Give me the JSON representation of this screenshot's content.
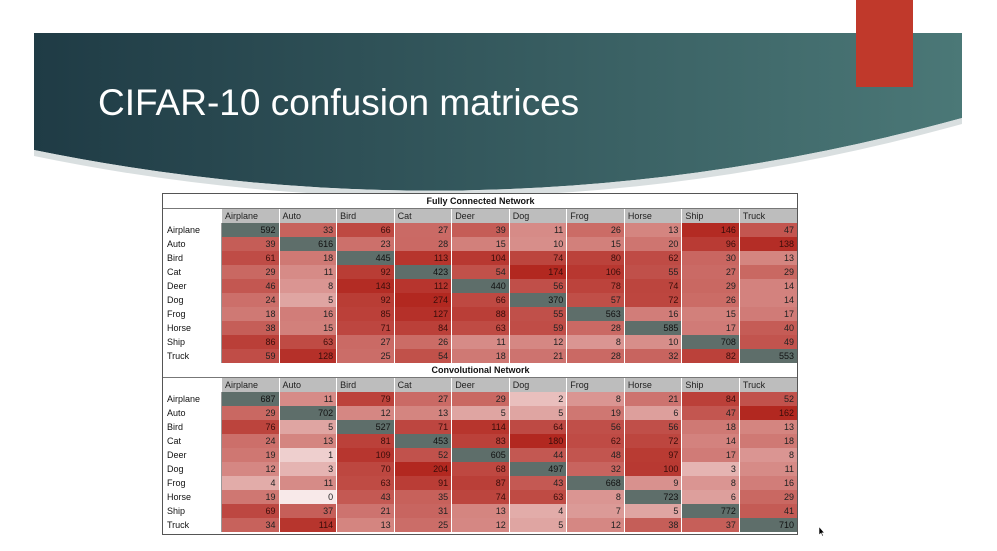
{
  "slide": {
    "title": "CIFAR-10 confusion matrices",
    "colors": {
      "banner_left": "#1f3b45",
      "banner_right": "#4b7877",
      "accent": "#c0392b",
      "low": "#f7e8e8",
      "high": "#b02a20",
      "diagonal": "#5e6e6a"
    }
  },
  "icons": {
    "cursor": "mouse-pointer-icon"
  },
  "tables": [
    {
      "title": "Fully Connected Network",
      "classes": [
        "Airplane",
        "Auto",
        "Bird",
        "Cat",
        "Deer",
        "Dog",
        "Frog",
        "Horse",
        "Ship",
        "Truck"
      ],
      "rows": [
        [
          592,
          33,
          66,
          27,
          39,
          11,
          26,
          13,
          146,
          47
        ],
        [
          39,
          616,
          23,
          28,
          15,
          10,
          15,
          20,
          96,
          138
        ],
        [
          61,
          18,
          445,
          113,
          104,
          74,
          80,
          62,
          30,
          13
        ],
        [
          29,
          11,
          92,
          423,
          54,
          174,
          106,
          55,
          27,
          29
        ],
        [
          46,
          8,
          143,
          112,
          440,
          56,
          78,
          74,
          29,
          14
        ],
        [
          24,
          5,
          92,
          274,
          66,
          370,
          57,
          72,
          26,
          14
        ],
        [
          18,
          16,
          85,
          127,
          88,
          55,
          563,
          16,
          15,
          17
        ],
        [
          38,
          15,
          71,
          84,
          63,
          59,
          28,
          585,
          17,
          40
        ],
        [
          86,
          63,
          27,
          26,
          11,
          12,
          8,
          10,
          708,
          49
        ],
        [
          59,
          128,
          25,
          54,
          18,
          21,
          28,
          32,
          82,
          553
        ]
      ]
    },
    {
      "title": "Convolutional Network",
      "classes": [
        "Airplane",
        "Auto",
        "Bird",
        "Cat",
        "Deer",
        "Dog",
        "Frog",
        "Horse",
        "Ship",
        "Truck"
      ],
      "rows": [
        [
          687,
          11,
          79,
          27,
          29,
          2,
          8,
          21,
          84,
          52
        ],
        [
          29,
          702,
          12,
          13,
          5,
          5,
          19,
          6,
          47,
          162
        ],
        [
          76,
          5,
          527,
          71,
          114,
          64,
          56,
          56,
          18,
          13
        ],
        [
          24,
          13,
          81,
          453,
          83,
          180,
          62,
          72,
          14,
          18
        ],
        [
          19,
          1,
          109,
          52,
          605,
          44,
          48,
          97,
          17,
          8
        ],
        [
          12,
          3,
          70,
          204,
          68,
          497,
          32,
          100,
          3,
          11
        ],
        [
          4,
          11,
          63,
          91,
          87,
          43,
          668,
          9,
          8,
          16
        ],
        [
          19,
          0,
          43,
          35,
          74,
          63,
          8,
          723,
          6,
          29
        ],
        [
          69,
          37,
          21,
          31,
          13,
          4,
          7,
          5,
          772,
          41
        ],
        [
          34,
          114,
          13,
          25,
          12,
          5,
          12,
          38,
          37,
          710
        ]
      ]
    }
  ]
}
